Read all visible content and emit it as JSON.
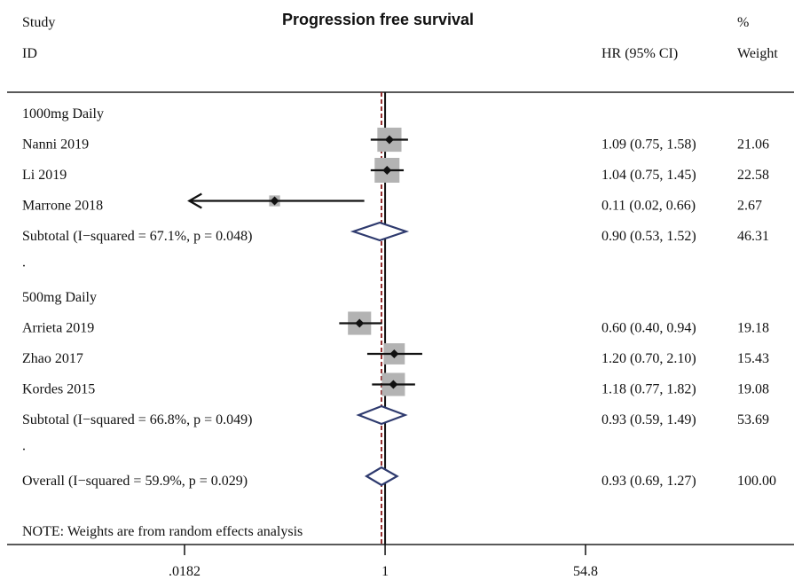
{
  "chart_data": {
    "type": "forest",
    "title": "Progression free survival",
    "header": {
      "study_line1": "Study",
      "study_line2": "ID",
      "hr_label": "HR (95% CI)",
      "weight_line1": "%",
      "weight_line2": "Weight"
    },
    "x_scale": "log",
    "xlim": [
      0.0182,
      54.8
    ],
    "x_ticks": [
      {
        "value": 0.0182,
        "label": ".0182"
      },
      {
        "value": 1,
        "label": "1"
      },
      {
        "value": 54.8,
        "label": "54.8"
      }
    ],
    "null_line": 1,
    "overall_line": 0.93,
    "rows": [
      {
        "type": "group",
        "label": "1000mg Daily"
      },
      {
        "type": "study",
        "label": "Nanni 2019",
        "hr": 1.09,
        "lo": 0.75,
        "hi": 1.58,
        "hr_text": "1.09 (0.75, 1.58)",
        "weight": 21.06,
        "weight_text": "21.06"
      },
      {
        "type": "study",
        "label": "Li 2019",
        "hr": 1.04,
        "lo": 0.75,
        "hi": 1.45,
        "hr_text": "1.04 (0.75, 1.45)",
        "weight": 22.58,
        "weight_text": "22.58"
      },
      {
        "type": "study",
        "label": "Marrone 2018",
        "hr": 0.11,
        "lo": 0.02,
        "hi": 0.66,
        "hr_text": "0.11 (0.02, 0.66)",
        "weight": 2.67,
        "weight_text": "2.67",
        "arrow_left": true
      },
      {
        "type": "subtotal",
        "label": "Subtotal  (I−squared = 67.1%, p = 0.048)",
        "hr": 0.9,
        "lo": 0.53,
        "hi": 1.52,
        "hr_text": "0.90 (0.53, 1.52)",
        "weight_text": "46.31"
      },
      {
        "type": "spacer",
        "label": "."
      },
      {
        "type": "group",
        "label": "500mg Daily"
      },
      {
        "type": "study",
        "label": "Arrieta 2019",
        "hr": 0.6,
        "lo": 0.4,
        "hi": 0.94,
        "hr_text": "0.60 (0.40, 0.94)",
        "weight": 19.18,
        "weight_text": "19.18"
      },
      {
        "type": "study",
        "label": "Zhao 2017",
        "hr": 1.2,
        "lo": 0.7,
        "hi": 2.1,
        "hr_text": "1.20 (0.70, 2.10)",
        "weight": 15.43,
        "weight_text": "15.43"
      },
      {
        "type": "study",
        "label": "Kordes 2015",
        "hr": 1.18,
        "lo": 0.77,
        "hi": 1.82,
        "hr_text": "1.18 (0.77, 1.82)",
        "weight": 19.08,
        "weight_text": "19.08"
      },
      {
        "type": "subtotal",
        "label": "Subtotal  (I−squared = 66.8%, p = 0.049)",
        "hr": 0.93,
        "lo": 0.59,
        "hi": 1.49,
        "hr_text": "0.93 (0.59, 1.49)",
        "weight_text": "53.69"
      },
      {
        "type": "spacer",
        "label": "."
      },
      {
        "type": "overall",
        "label": "Overall  (I−squared = 59.9%, p = 0.029)",
        "hr": 0.93,
        "lo": 0.69,
        "hi": 1.27,
        "hr_text": "0.93 (0.69, 1.27)",
        "weight_text": "100.00"
      }
    ],
    "note": "NOTE: Weights are from random effects analysis",
    "colors": {
      "box": "#b3b3b3",
      "diamond": "#2e3a6e",
      "overall_line": "#8b1a1a",
      "text": "#111111"
    }
  }
}
